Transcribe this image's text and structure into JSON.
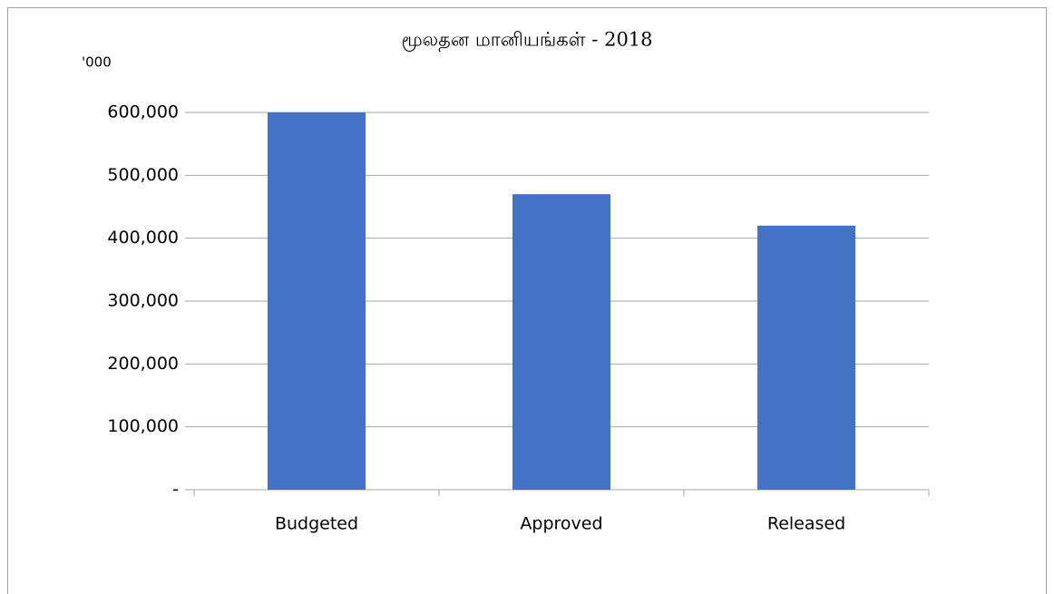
{
  "chart_data": {
    "type": "bar",
    "title": "மூலதன மானியங்கள் - 2018",
    "y_unit": "'000",
    "categories": [
      "Budgeted",
      "Approved",
      "Released"
    ],
    "values": [
      600000,
      470000,
      420000
    ],
    "color": "#4472c4",
    "ylim": [
      0,
      600000
    ],
    "yticks": [
      {
        "value": 0,
        "label": "-"
      },
      {
        "value": 100000,
        "label": "100,000"
      },
      {
        "value": 200000,
        "label": "200,000"
      },
      {
        "value": 300000,
        "label": "300,000"
      },
      {
        "value": 400000,
        "label": "400,000"
      },
      {
        "value": 500000,
        "label": "500,000"
      },
      {
        "value": 600000,
        "label": "600,000"
      }
    ],
    "grid": true
  }
}
